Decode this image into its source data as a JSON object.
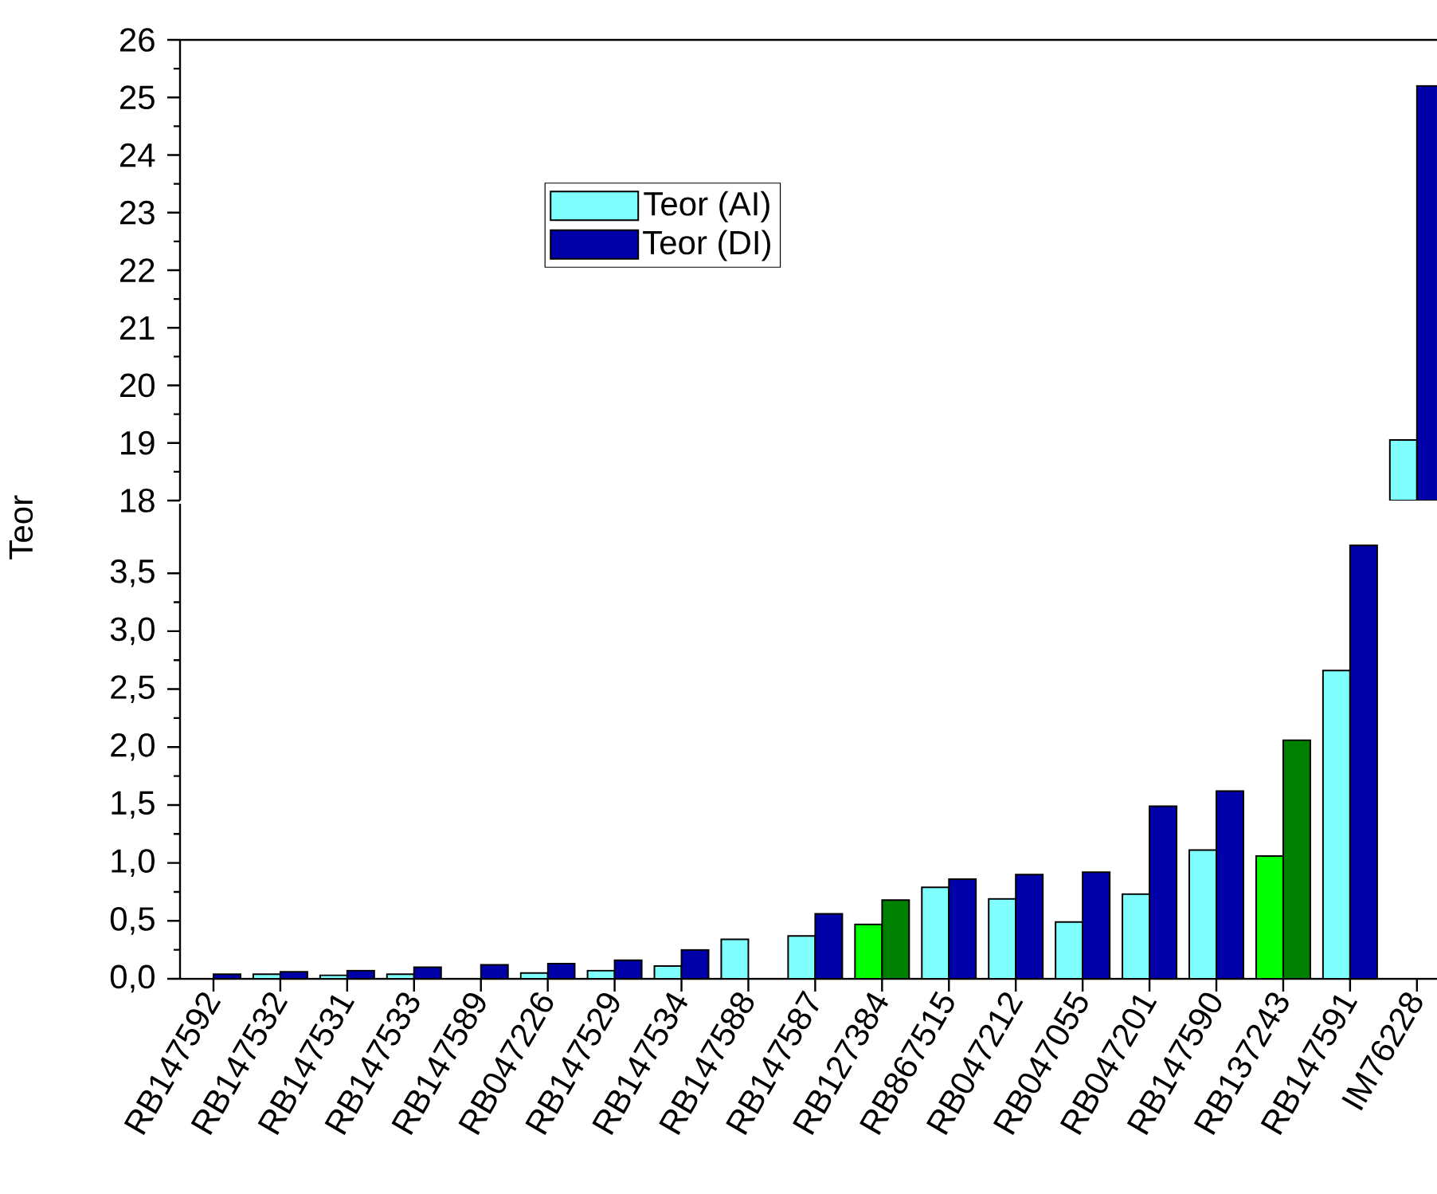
{
  "chart_data": [
    {
      "type": "bar",
      "categories": [
        null,
        null,
        null,
        null,
        null,
        null,
        null,
        null,
        null,
        null,
        null,
        null,
        null,
        null,
        null,
        null,
        null,
        null,
        null
      ],
      "series": [
        {
          "name": "Teor (AI)",
          "color": "#80ffff",
          "values": [
            null,
            null,
            null,
            null,
            null,
            null,
            null,
            null,
            null,
            null,
            null,
            null,
            null,
            null,
            null,
            null,
            null,
            null,
            19.05
          ]
        },
        {
          "name": "Teor (DI)",
          "color": "#0000a8",
          "values": [
            null,
            null,
            null,
            null,
            null,
            null,
            null,
            null,
            null,
            null,
            null,
            null,
            null,
            null,
            null,
            null,
            null,
            null,
            25.2
          ]
        }
      ],
      "ylim": [
        18,
        26
      ],
      "yticks": [
        18,
        19,
        20,
        21,
        22,
        23,
        24,
        25,
        26
      ],
      "tick_labels": "y",
      "legend": "top left",
      "grid": false
    },
    {
      "type": "bar",
      "ylabel": "Teor",
      "categories": [
        "RB147592",
        "RB147532",
        "RB147531",
        "RB147533",
        "RB147589",
        "RB047226",
        "RB147529",
        "RB147534",
        "RB147588",
        "RB147587",
        "RB127384",
        "RB867515",
        "RB047212",
        "RB047055",
        "RB047201",
        "RB147590",
        "RB137243",
        "RB147591",
        "IM76228"
      ],
      "series": [
        {
          "colors": [
            "#80ffff",
            "#80ffff",
            "#80ffff",
            "#80ffff",
            "#80ffff",
            "#80ffff",
            "#80ffff",
            "#80ffff",
            "#80ffff",
            "#80ffff",
            "#00ff00",
            "#80ffff",
            "#80ffff",
            "#80ffff",
            "#80ffff",
            "#80ffff",
            "#00ff00",
            "#80ffff",
            "#80ffff"
          ],
          "values": [
            null,
            0.04,
            0.03,
            0.04,
            null,
            0.05,
            0.07,
            0.11,
            0.34,
            0.37,
            0.47,
            0.79,
            0.69,
            0.49,
            0.73,
            1.11,
            1.06,
            2.66,
            null
          ]
        },
        {
          "colors": [
            "#0000a8",
            "#0000a8",
            "#0000a8",
            "#0000a8",
            "#0000a8",
            "#0000a8",
            "#0000a8",
            "#0000a8",
            "#0000a8",
            "#0000a8",
            "#008000",
            "#0000a8",
            "#0000a8",
            "#0000a8",
            "#0000a8",
            "#0000a8",
            "#008000",
            "#0000a8",
            "#0000a8"
          ],
          "values": [
            0.04,
            0.06,
            0.07,
            0.1,
            0.12,
            0.13,
            0.16,
            0.25,
            null,
            0.56,
            0.68,
            0.86,
            0.9,
            0.92,
            1.49,
            1.62,
            2.06,
            3.74,
            null
          ]
        }
      ],
      "ylim": [
        0,
        4.1
      ],
      "yticks": [
        {
          "value": 0,
          "label": "0,0"
        },
        {
          "value": 0.5,
          "label": "0,5"
        },
        {
          "value": 1,
          "label": "1,0"
        },
        {
          "value": 1.5,
          "label": "1,5"
        },
        {
          "value": 2,
          "label": "2,0"
        },
        {
          "value": 2.5,
          "label": "2,5"
        },
        {
          "value": 3,
          "label": "3,0"
        },
        {
          "value": 3.5,
          "label": "3,5"
        }
      ],
      "grid": false
    }
  ]
}
